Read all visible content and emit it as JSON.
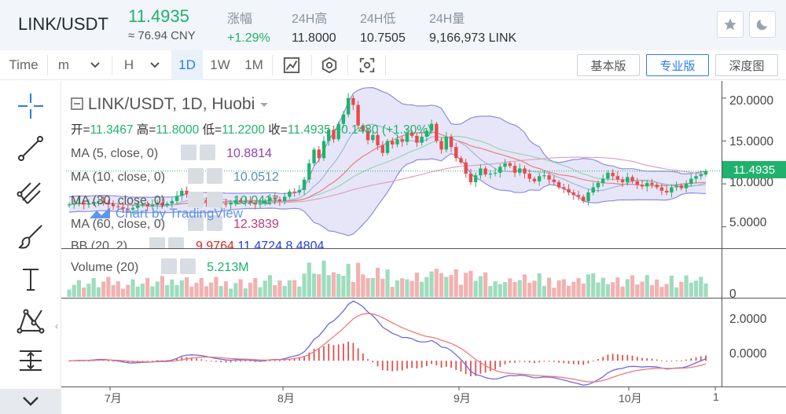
{
  "header": {
    "pair": "LINK/USDT",
    "price": "11.4935",
    "cny": "≈ 76.94 CNY",
    "stats": [
      {
        "label": "涨幅",
        "value": "+1.29%",
        "up": true
      },
      {
        "label": "24H高",
        "value": "11.8000",
        "up": false
      },
      {
        "label": "24H低",
        "value": "10.7505",
        "up": false
      },
      {
        "label": "24H量",
        "value": "9,166,973 LINK",
        "up": false
      }
    ],
    "icons": [
      "star-icon",
      "moon-icon"
    ]
  },
  "toolbar": {
    "time": "Time",
    "minute": "m",
    "hour": "H",
    "intervals": [
      "1D",
      "1W",
      "1M"
    ],
    "active_interval": "1D",
    "views": [
      "基本版",
      "专业版",
      "深度图"
    ],
    "active_view": "专业版"
  },
  "tools": [
    "crosshair-icon",
    "trend-line-icon",
    "pitchfork-icon",
    "brush-icon",
    "text-tool-icon",
    "pattern-icon",
    "measure-icon",
    "collapse-icon"
  ],
  "legend": {
    "title": "LINK/USDT, 1D, Huobi",
    "ohlc": {
      "open_label": "开=",
      "open": "11.3467",
      "high_label": "高=",
      "high": "11.8000",
      "low_label": "低=",
      "low": "11.2200",
      "close_label": "收=",
      "close": "11.4935",
      "change": "+0.1480 (+1.30%)"
    },
    "indicators": [
      {
        "label": "MA (5, close, 0)",
        "value": "10.8814",
        "color": "#8e44ad"
      },
      {
        "label": "MA (10, close, 0)",
        "value": "10.0512",
        "color": "#5a8fb8"
      },
      {
        "label": "MA (30, close, 0)",
        "value": "10.0417",
        "color": "#20b26c"
      },
      {
        "label": "MA (60, close, 0)",
        "value": "12.3839",
        "color": "#c0397a"
      },
      {
        "label": "BB (20, 2)",
        "values": [
          "9.9764",
          "11.4724",
          "8.4804"
        ],
        "colors": [
          "#e02020",
          "#2040e0",
          "#2040e0"
        ]
      }
    ],
    "volume_label": "Volume (20)",
    "volume_value": "5.213M",
    "watermark": "Chart by TradingView"
  },
  "axes": {
    "price_ticks": [
      "20.0000",
      "15.0000",
      "10.0000",
      "5.0000"
    ],
    "volume_tick": "0",
    "macd_ticks": [
      "2.0000",
      "0.0000"
    ],
    "x_ticks": [
      "7月",
      "8月",
      "9月",
      "10月",
      "1"
    ],
    "last_price": "11.4935"
  },
  "colors": {
    "up": "#20b26c",
    "down": "#e84b4b",
    "accent": "#2b7de9",
    "bb_fill": "#c9c8f0"
  },
  "chart_data": {
    "type": "candlestick",
    "title": "LINK/USDT, 1D, Huobi",
    "yrange": [
      2.5,
      22.0
    ],
    "closes": [
      7.6,
      7.7,
      7.8,
      7.6,
      7.7,
      7.9,
      8.0,
      7.8,
      7.6,
      7.4,
      7.3,
      7.1,
      7.0,
      7.2,
      7.5,
      7.6,
      7.4,
      7.6,
      7.8,
      7.5,
      7.7,
      8.0,
      8.6,
      9.2,
      8.8,
      8.5,
      8.3,
      8.1,
      7.9,
      7.8,
      7.6,
      7.7,
      7.6,
      7.8,
      8.1,
      7.9,
      8.0,
      7.8,
      7.6,
      7.7,
      8.0,
      8.4,
      8.2,
      8.0,
      8.5,
      9.1,
      9.0,
      9.3,
      10.5,
      12.4,
      14.0,
      13.0,
      15.0,
      16.3,
      15.2,
      17.0,
      18.1,
      20.0,
      19.2,
      16.8,
      16.2,
      15.1,
      15.7,
      14.5,
      13.6,
      15.0,
      14.6,
      15.2,
      14.9,
      16.0,
      15.6,
      14.8,
      15.5,
      16.2,
      17.0,
      15.0,
      14.0,
      15.5,
      14.3,
      13.0,
      12.5,
      11.2,
      10.2,
      11.0,
      11.8,
      11.1,
      11.2,
      11.3,
      12.0,
      12.4,
      12.1,
      11.3,
      11.8,
      11.2,
      10.6,
      10.3,
      10.9,
      11.0,
      10.5,
      10.2,
      9.6,
      9.4,
      9.0,
      8.7,
      8.5,
      8.0,
      9.0,
      9.6,
      10.1,
      10.6,
      11.3,
      10.9,
      10.5,
      10.2,
      10.8,
      10.3,
      9.9,
      9.7,
      10.1,
      9.9,
      9.6,
      9.2,
      9.0,
      9.6,
      9.8,
      9.5,
      10.0,
      10.6,
      10.9,
      11.1,
      11.49
    ],
    "x_ticks": [
      "7月",
      "8月",
      "9月",
      "10月",
      "1"
    ],
    "series": [
      {
        "name": "MA (5, close, 0)",
        "value": "10.8814"
      },
      {
        "name": "MA (10, close, 0)",
        "value": "10.0512"
      },
      {
        "name": "MA (30, close, 0)",
        "value": "10.0417"
      },
      {
        "name": "MA (60, close, 0)",
        "value": "12.3839"
      },
      {
        "name": "BB (20, 2)",
        "value": "9.9764"
      }
    ],
    "volume_series": "Volume (20)",
    "volume_current": "5.213M",
    "macd_range": [
      -1.2,
      2.9
    ]
  }
}
